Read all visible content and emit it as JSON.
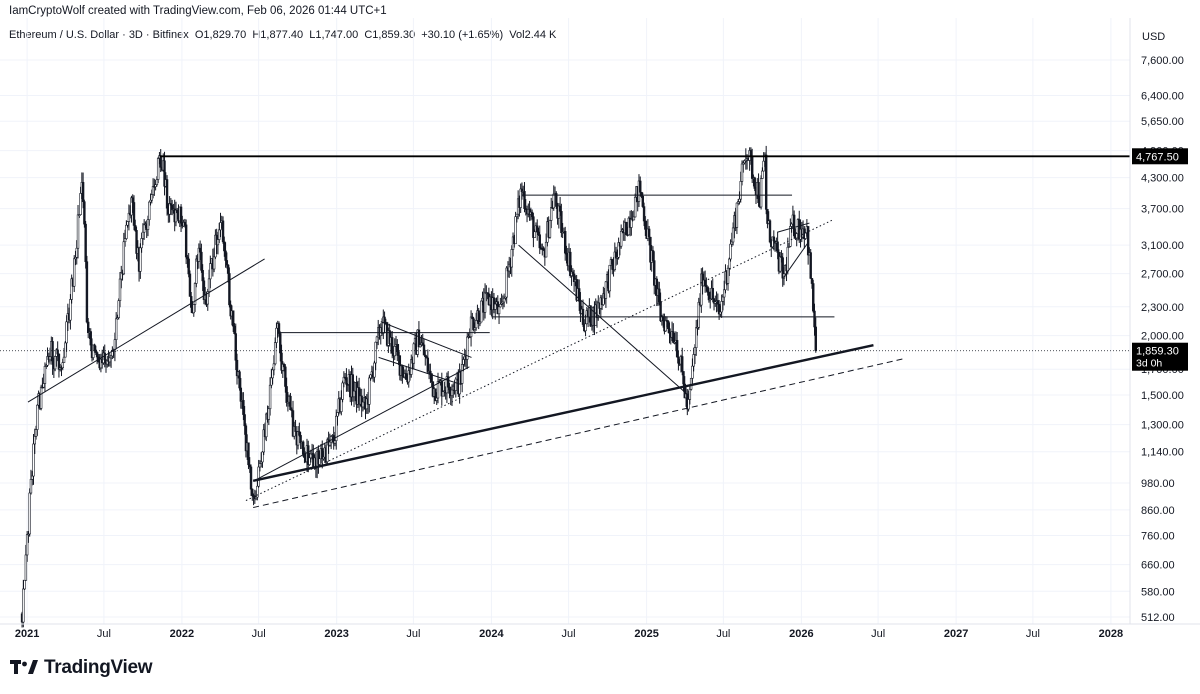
{
  "header": {
    "credit": "IamCryptoWolf created with TradingView.com, Feb 06, 2026 01:44 UTC+1",
    "symbol": "Ethereum / U.S. Dollar · 3D · Bitfinex",
    "open": "O1,829.70",
    "high": "H1,877.40",
    "low": "L1,747.00",
    "close": "C1,859.30",
    "change": "+30.10 (+1.65%)",
    "volume": "Vol2.44 K"
  },
  "footer": {
    "brand": "TradingView"
  },
  "chart_data": {
    "type": "candlestick",
    "title": "Ethereum / U.S. Dollar · 3D · Bitfinex",
    "y_unit": "USD",
    "y_scale": "log",
    "ylim": [
      500,
      9000
    ],
    "y_ticks": [
      512,
      580,
      660,
      760,
      860,
      980,
      1140,
      1300,
      1500,
      1700,
      2000,
      2300,
      2700,
      3100,
      3700,
      4300,
      4900,
      5650,
      6400,
      7600
    ],
    "y_tick_labels": [
      "512.00",
      "580.00",
      "660.00",
      "760.00",
      "860.00",
      "980.00",
      "1,140.00",
      "1,300.00",
      "1,500.00",
      "1,700.00",
      "2,000.00",
      "2,300.00",
      "2,700.00",
      "3,100.00",
      "3,700.00",
      "4,300.00",
      "4,900.00",
      "5,650.00",
      "6,400.00",
      "7,600.00"
    ],
    "x_ticks": [
      {
        "date": "2021-01-01",
        "label": "2021",
        "year": true
      },
      {
        "date": "2021-07-01",
        "label": "Jul",
        "year": false
      },
      {
        "date": "2022-01-01",
        "label": "2022",
        "year": true
      },
      {
        "date": "2022-07-01",
        "label": "Jul",
        "year": false
      },
      {
        "date": "2023-01-01",
        "label": "2023",
        "year": true
      },
      {
        "date": "2023-07-01",
        "label": "Jul",
        "year": false
      },
      {
        "date": "2024-01-01",
        "label": "2024",
        "year": true
      },
      {
        "date": "2024-07-01",
        "label": "Jul",
        "year": false
      },
      {
        "date": "2025-01-01",
        "label": "2025",
        "year": true
      },
      {
        "date": "2025-07-01",
        "label": "Jul",
        "year": false
      },
      {
        "date": "2026-01-01",
        "label": "2026",
        "year": true
      },
      {
        "date": "2026-07-01",
        "label": "Jul",
        "year": false
      },
      {
        "date": "2027-01-01",
        "label": "2027",
        "year": true
      },
      {
        "date": "2027-07-01",
        "label": "Jul",
        "year": false
      },
      {
        "date": "2028-01-01",
        "label": "2028",
        "year": true
      }
    ],
    "price_path": [
      [
        "2020-12-20",
        520
      ],
      [
        "2021-01-20",
        1300
      ],
      [
        "2021-02-20",
        1900
      ],
      [
        "2021-03-20",
        1700
      ],
      [
        "2021-04-10",
        2200
      ],
      [
        "2021-05-12",
        4300
      ],
      [
        "2021-05-24",
        2000
      ],
      [
        "2021-06-22",
        1750
      ],
      [
        "2021-07-20",
        1800
      ],
      [
        "2021-08-20",
        3200
      ],
      [
        "2021-09-05",
        3900
      ],
      [
        "2021-09-21",
        2800
      ],
      [
        "2021-11-10",
        4868
      ],
      [
        "2021-12-04",
        3600
      ],
      [
        "2022-01-05",
        3500
      ],
      [
        "2022-01-24",
        2200
      ],
      [
        "2022-02-10",
        3200
      ],
      [
        "2022-02-24",
        2300
      ],
      [
        "2022-04-03",
        3580
      ],
      [
        "2022-05-12",
        1700
      ],
      [
        "2022-06-18",
        880
      ],
      [
        "2022-07-05",
        1050
      ],
      [
        "2022-08-14",
        2030
      ],
      [
        "2022-09-21",
        1250
      ],
      [
        "2022-11-09",
        1080
      ],
      [
        "2022-12-25",
        1200
      ],
      [
        "2023-01-20",
        1650
      ],
      [
        "2023-03-10",
        1400
      ],
      [
        "2023-04-16",
        2140
      ],
      [
        "2023-06-15",
        1630
      ],
      [
        "2023-07-14",
        2000
      ],
      [
        "2023-08-17",
        1550
      ],
      [
        "2023-10-20",
        1600
      ],
      [
        "2023-11-10",
        2100
      ],
      [
        "2023-12-28",
        2400
      ],
      [
        "2024-01-23",
        2200
      ],
      [
        "2024-03-12",
        4090
      ],
      [
        "2024-05-01",
        2900
      ],
      [
        "2024-05-27",
        3950
      ],
      [
        "2024-08-05",
        2150
      ],
      [
        "2024-09-06",
        2250
      ],
      [
        "2024-12-16",
        4100
      ],
      [
        "2025-02-03",
        2200
      ],
      [
        "2025-03-10",
        2000
      ],
      [
        "2025-04-09",
        1385
      ],
      [
        "2025-05-13",
        2700
      ],
      [
        "2025-06-22",
        2200
      ],
      [
        "2025-08-24",
        4956
      ],
      [
        "2025-09-25",
        3900
      ],
      [
        "2025-10-07",
        4750
      ],
      [
        "2025-10-11",
        3450
      ],
      [
        "2025-11-21",
        2650
      ],
      [
        "2025-12-10",
        3400
      ],
      [
        "2026-01-14",
        3350
      ],
      [
        "2026-02-06",
        1859.3
      ]
    ],
    "last_price": 1859.3,
    "last_price_label": "1,859.30",
    "countdown_label": "3d 0h",
    "annotations": [
      {
        "type": "horizontal",
        "price": 4767.5,
        "label": "4,767.50",
        "from": "2021-11-10",
        "to": "2026-12-31"
      },
      {
        "type": "segment",
        "from": [
          "2024-03-12",
          3950
        ],
        "to": [
          "2025-12-10",
          3950
        ]
      },
      {
        "type": "segment",
        "from": [
          "2022-08-14",
          2030
        ],
        "to": [
          "2023-12-28",
          2030
        ]
      },
      {
        "type": "segment",
        "from": [
          "2024-01-01",
          2190
        ],
        "to": [
          "2026-03-20",
          2190
        ]
      },
      {
        "type": "segment",
        "from": [
          "2021-01-03",
          1450
        ],
        "to": [
          "2022-07-15",
          2900
        ]
      },
      {
        "type": "segment",
        "from": [
          "2022-06-18",
          990
        ],
        "to": [
          "2026-06-20",
          1910
        ],
        "bold": true
      },
      {
        "type": "segment",
        "from": [
          "2022-06-18",
          870
        ],
        "to": [
          "2026-09-01",
          1790
        ],
        "dashed": true
      },
      {
        "type": "segment",
        "from": [
          "2022-06-01",
          900
        ],
        "to": [
          "2026-03-15",
          3500
        ],
        "dotted": true
      },
      {
        "type": "segment",
        "from": [
          "2022-06-20",
          990
        ],
        "to": [
          "2023-11-10",
          1720
        ]
      },
      {
        "type": "segment",
        "from": [
          "2024-03-05",
          3100
        ],
        "to": [
          "2025-04-09",
          1500
        ]
      },
      {
        "type": "segment",
        "from": [
          "2023-04-15",
          2140
        ],
        "to": [
          "2023-11-15",
          1800
        ]
      },
      {
        "type": "segment",
        "from": [
          "2023-04-10",
          1800
        ],
        "to": [
          "2023-10-20",
          1580
        ]
      },
      {
        "type": "segment",
        "from": [
          "2025-11-05",
          3300
        ],
        "to": [
          "2026-01-20",
          3450
        ]
      },
      {
        "type": "segment",
        "from": [
          "2025-11-20",
          2650
        ],
        "to": [
          "2026-01-18",
          3150
        ]
      }
    ]
  }
}
